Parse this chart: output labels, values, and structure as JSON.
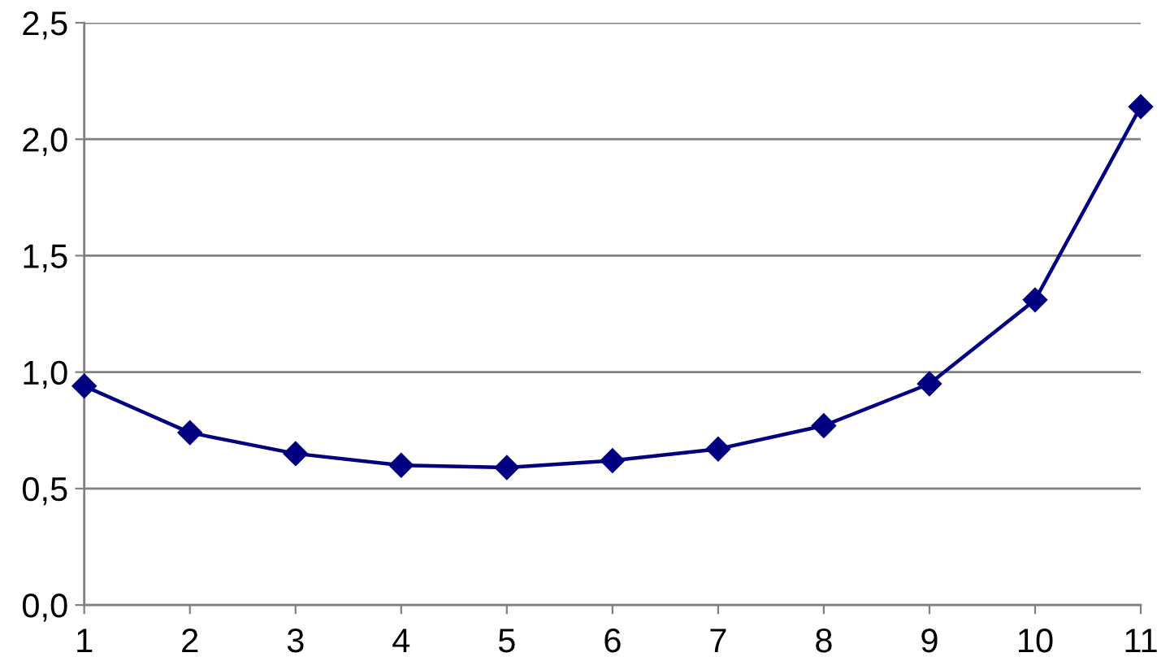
{
  "chart_data": {
    "type": "line",
    "x": [
      1,
      2,
      3,
      4,
      5,
      6,
      7,
      8,
      9,
      10,
      11
    ],
    "values": [
      0.94,
      0.74,
      0.65,
      0.6,
      0.59,
      0.62,
      0.67,
      0.77,
      0.95,
      1.31,
      2.14
    ],
    "color": "#000080",
    "marker": "diamond",
    "line_style": "solid",
    "xlim": [
      1,
      11
    ],
    "xticks": [
      1,
      2,
      3,
      4,
      5,
      6,
      7,
      8,
      9,
      10,
      11
    ],
    "ylim": [
      0,
      2.5
    ],
    "yticks": [
      {
        "value": 0,
        "label": "0,0"
      },
      {
        "value": 0.5,
        "label": "0,5"
      },
      {
        "value": 1,
        "label": "1,0"
      },
      {
        "value": 1.5,
        "label": "1,5"
      },
      {
        "value": 2,
        "label": "2,0"
      },
      {
        "value": 2.5,
        "label": "2,5"
      }
    ],
    "grid": "y"
  }
}
